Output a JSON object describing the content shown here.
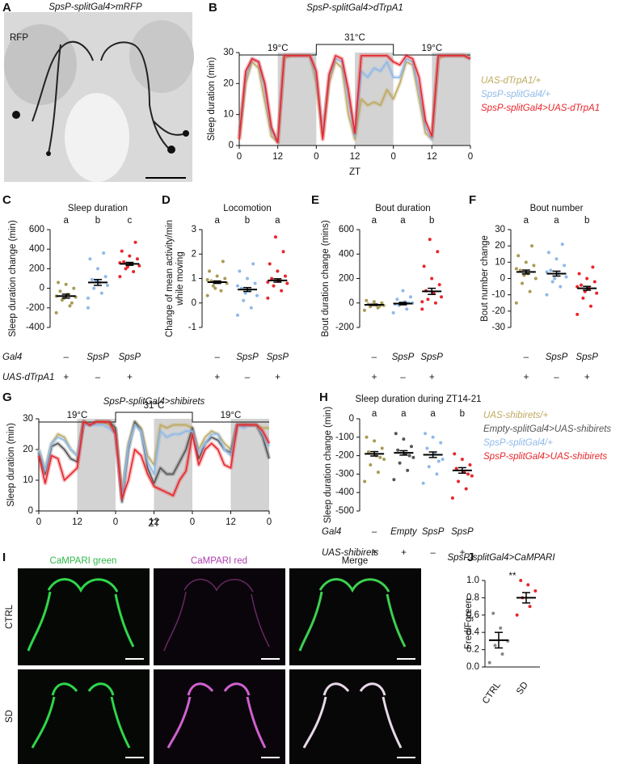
{
  "images": [
    {
      "panel": "A",
      "title": "SpsP-splitGal4>mRFP",
      "channel": "RFP"
    },
    {
      "panel": "I",
      "columns": [
        "CaMPARI green",
        "CaMPARI red",
        "Merge"
      ],
      "rows": [
        "CTRL",
        "SD"
      ]
    }
  ],
  "chart_data": [
    {
      "panel": "B",
      "type": "line",
      "title": "SpsP-splitGal4>dTrpA1",
      "ylabel": "Sleep duration (min)",
      "xlabel": "ZT",
      "x": [
        0,
        2,
        4,
        6,
        8,
        10,
        12,
        14,
        16,
        18,
        20,
        22,
        24,
        26,
        28,
        30,
        32,
        34,
        36,
        38,
        40,
        42,
        44,
        46,
        48,
        50,
        52,
        54,
        56,
        58,
        60,
        62,
        64,
        66,
        68,
        70,
        72
      ],
      "xlim": [
        0,
        72
      ],
      "xticks": [
        0,
        12,
        {
          "value": 24,
          "label": "0"
        },
        {
          "value": 36,
          "label": "12"
        },
        {
          "value": 48,
          "label": "0"
        },
        {
          "value": 60,
          "label": "12"
        },
        {
          "value": 72,
          "label": "0"
        }
      ],
      "ylim": [
        0,
        30
      ],
      "yticks": [
        0,
        10,
        20,
        30
      ],
      "shaded": [
        [
          12,
          24
        ],
        [
          36,
          48
        ],
        [
          60,
          72
        ]
      ],
      "temperature": [
        {
          "label": "19°C",
          "range": [
            0,
            24
          ]
        },
        {
          "label": "31°C",
          "range": [
            24,
            48
          ]
        },
        {
          "label": "19°C",
          "range": [
            48,
            72
          ]
        }
      ],
      "legend": "right",
      "series": [
        {
          "name": "UAS-dTrpA1/+",
          "color": "#bfa95e",
          "values": [
            2,
            20,
            27,
            25,
            14,
            3,
            1,
            28,
            29,
            29,
            29,
            29,
            20,
            3,
            20,
            27,
            25,
            10,
            2,
            15,
            13,
            14,
            13,
            18,
            15,
            20,
            27,
            26,
            15,
            4,
            2,
            28,
            29,
            29,
            29,
            29,
            28
          ]
        },
        {
          "name": "SpsP-splitGal4/+",
          "color": "#8fb9e8",
          "values": [
            3,
            22,
            28,
            27,
            18,
            5,
            1,
            29,
            29,
            29,
            29,
            29,
            22,
            4,
            22,
            28,
            27,
            15,
            3,
            24,
            22,
            25,
            24,
            27,
            22,
            22,
            28,
            27,
            18,
            6,
            2,
            29,
            29,
            29,
            29,
            29,
            28
          ]
        },
        {
          "name": "SpsP-splitGal4>UAS-dTrpA1",
          "color": "#e8262b",
          "values": [
            2,
            24,
            28,
            27,
            20,
            6,
            1,
            29,
            29,
            29,
            29,
            29,
            24,
            2,
            23,
            29,
            28,
            18,
            4,
            29,
            29,
            29,
            29,
            29,
            27,
            26,
            29,
            28,
            22,
            8,
            3,
            29,
            29,
            29,
            29,
            29,
            28
          ]
        }
      ]
    },
    {
      "panel": "C",
      "type": "dot",
      "title": "Sleep duration",
      "ylabel": "Sleep duration change (min)",
      "ylim": [
        -400,
        600
      ],
      "yticks": [
        -400,
        -200,
        0,
        200,
        400,
        600
      ],
      "groups": [
        {
          "color": "#a89a55",
          "letter": "a",
          "mean": -80,
          "sem": 20,
          "values": [
            -250,
            -180,
            -120,
            -90,
            -60,
            -30,
            0,
            40,
            60,
            -150,
            -100,
            -80
          ]
        },
        {
          "color": "#8fb9e8",
          "letter": "b",
          "mean": 60,
          "sem": 30,
          "values": [
            -200,
            -50,
            0,
            30,
            60,
            90,
            120,
            200,
            300,
            360,
            80,
            -100
          ]
        },
        {
          "color": "#e8262b",
          "letter": "c",
          "mean": 250,
          "sem": 15,
          "values": [
            120,
            170,
            200,
            230,
            250,
            270,
            300,
            330,
            380,
            470,
            220,
            260
          ]
        }
      ],
      "rows": [
        {
          "label": "Gal4",
          "cells": [
            "–",
            "SpsP",
            "SpsP"
          ]
        },
        {
          "label": "UAS-dTrpA1",
          "cells": [
            "+",
            "–",
            "+"
          ]
        }
      ]
    },
    {
      "panel": "D",
      "type": "dot",
      "title": "Locomotion",
      "ylabel": [
        "Change of mean activity/min",
        "while moving"
      ],
      "ylim": [
        -1,
        3
      ],
      "yticks": [
        -1,
        0,
        1,
        2,
        3
      ],
      "groups": [
        {
          "color": "#a89a55",
          "letter": "a",
          "mean": 0.85,
          "sem": 0.05,
          "values": [
            0.3,
            0.5,
            0.7,
            0.8,
            0.85,
            0.9,
            1.0,
            1.1,
            1.3,
            1.7,
            0.6,
            0.95
          ]
        },
        {
          "color": "#8fb9e8",
          "letter": "b",
          "mean": 0.55,
          "sem": 0.08,
          "values": [
            -0.5,
            -0.2,
            0.1,
            0.3,
            0.5,
            0.6,
            0.8,
            1.0,
            1.3,
            1.6,
            0.4,
            0.7
          ]
        },
        {
          "color": "#e8262b",
          "letter": "a",
          "mean": 0.92,
          "sem": 0.07,
          "values": [
            0.2,
            0.5,
            0.7,
            0.8,
            0.9,
            1.0,
            1.1,
            1.3,
            1.6,
            2.1,
            2.7,
            0.85
          ]
        }
      ],
      "rows": [
        {
          "cells": [
            "–",
            "SpsP",
            "SpsP"
          ]
        },
        {
          "cells": [
            "+",
            "–",
            "+"
          ]
        }
      ]
    },
    {
      "panel": "E",
      "type": "dot",
      "title": "Bout duration",
      "ylabel": "Bout duration change (mins)",
      "ylim": [
        -200,
        600
      ],
      "yticks": [
        -200,
        0,
        200,
        400,
        600
      ],
      "groups": [
        {
          "color": "#a89a55",
          "letter": "a",
          "mean": -15,
          "sem": 5,
          "values": [
            -60,
            -40,
            -30,
            -20,
            -15,
            -10,
            0,
            10,
            20,
            -25
          ]
        },
        {
          "color": "#8fb9e8",
          "letter": "a",
          "mean": -5,
          "sem": 10,
          "values": [
            -80,
            -50,
            -20,
            0,
            10,
            30,
            50,
            100,
            -10,
            0
          ]
        },
        {
          "color": "#e8262b",
          "letter": "b",
          "mean": 95,
          "sem": 25,
          "values": [
            -50,
            0,
            30,
            50,
            80,
            100,
            150,
            200,
            300,
            420,
            520,
            10
          ]
        }
      ],
      "rows": [
        {
          "cells": [
            "–",
            "SpsP",
            "SpsP"
          ]
        },
        {
          "cells": [
            "+",
            "–",
            "+"
          ]
        }
      ]
    },
    {
      "panel": "F",
      "type": "dot",
      "title": "Bout number",
      "ylabel": "Bout number change",
      "ylim": [
        -30,
        30
      ],
      "yticks": [
        -30,
        -20,
        -10,
        0,
        10,
        20,
        30
      ],
      "groups": [
        {
          "color": "#a89a55",
          "letter": "a",
          "mean": 4,
          "sem": 1.2,
          "values": [
            -15,
            -8,
            -3,
            0,
            3,
            5,
            8,
            10,
            14,
            20,
            2,
            6
          ]
        },
        {
          "color": "#8fb9e8",
          "letter": "a",
          "mean": 3,
          "sem": 1.5,
          "values": [
            -10,
            -5,
            -2,
            1,
            3,
            5,
            8,
            12,
            16,
            21,
            0,
            4
          ]
        },
        {
          "color": "#e8262b",
          "letter": "b",
          "mean": -6,
          "sem": 1.2,
          "values": [
            -22,
            -17,
            -12,
            -9,
            -6,
            -4,
            -2,
            0,
            3,
            7,
            -8,
            -5
          ]
        }
      ],
      "rows": [
        {
          "cells": [
            "–",
            "SpsP",
            "SpsP"
          ]
        },
        {
          "cells": [
            "+",
            "–",
            "+"
          ]
        }
      ]
    },
    {
      "panel": "G",
      "type": "line",
      "title": "SpsP-splitGal4>shibirets",
      "ylabel": "Sleep duration (min)",
      "xlabel": "ZT",
      "x": [
        0,
        2,
        4,
        6,
        8,
        10,
        12,
        14,
        16,
        18,
        20,
        22,
        24,
        26,
        28,
        30,
        32,
        34,
        36,
        38,
        40,
        42,
        44,
        46,
        48,
        50,
        52,
        54,
        56,
        58,
        60,
        62,
        64,
        66,
        68,
        70,
        72
      ],
      "xlim": [
        0,
        72
      ],
      "xticks": [
        0,
        12,
        {
          "value": 24,
          "label": "0"
        },
        {
          "value": 36,
          "label": "12"
        },
        {
          "value": 48,
          "label": "0"
        },
        {
          "value": 60,
          "label": "12"
        },
        {
          "value": 72,
          "label": "0"
        }
      ],
      "ylim": [
        0,
        30
      ],
      "yticks": [
        0,
        10,
        20,
        30
      ],
      "shaded": [
        [
          12,
          24
        ],
        [
          36,
          48
        ],
        [
          60,
          72
        ]
      ],
      "temperature": [
        {
          "label": "19°C",
          "range": [
            0,
            24
          ]
        },
        {
          "label": "31°C",
          "range": [
            24,
            48
          ]
        },
        {
          "label": "19°C",
          "range": [
            48,
            72
          ]
        }
      ],
      "legend": "right",
      "series": [
        {
          "name": "UAS-shibirets/+",
          "color": "#bfa95e",
          "values": [
            20,
            13,
            22,
            25,
            24,
            20,
            18,
            29,
            28,
            29,
            29,
            28,
            26,
            5,
            22,
            29,
            27,
            18,
            15,
            28,
            27,
            28,
            28,
            28,
            27,
            20,
            24,
            26,
            25,
            22,
            20,
            28,
            28,
            28,
            28,
            27,
            27
          ]
        },
        {
          "name": "Empty-splitGal4>UAS-shibirets",
          "color": "#555555",
          "values": [
            19,
            12,
            21,
            22,
            20,
            17,
            16,
            29,
            28,
            29,
            29,
            29,
            27,
            3,
            20,
            29,
            26,
            14,
            9,
            14,
            12,
            12,
            16,
            20,
            27,
            17,
            22,
            24,
            23,
            20,
            19,
            28,
            28,
            28,
            28,
            24,
            17
          ]
        },
        {
          "name": "SpsP-splitGal4/+",
          "color": "#8fb9e8",
          "values": [
            20,
            13,
            22,
            24,
            23,
            20,
            18,
            28,
            28,
            28,
            28,
            27,
            25,
            4,
            21,
            28,
            26,
            16,
            12,
            26,
            24,
            25,
            25,
            26,
            26,
            19,
            22,
            25,
            25,
            20,
            18,
            28,
            27,
            28,
            28,
            25,
            21
          ]
        },
        {
          "name": "SpsP-splitGal4>UAS-shibirets",
          "color": "#e8262b",
          "values": [
            18,
            9,
            18,
            17,
            10,
            12,
            14,
            29,
            28,
            29,
            29,
            29,
            25,
            4,
            10,
            20,
            18,
            12,
            8,
            7,
            6,
            5,
            10,
            13,
            25,
            15,
            20,
            22,
            20,
            15,
            14,
            28,
            28,
            28,
            28,
            26,
            22
          ]
        }
      ]
    },
    {
      "panel": "H",
      "type": "dot",
      "title": "Sleep duration during ZT14-21",
      "ylabel": "Sleep duration change (min)",
      "ylim": [
        -500,
        0
      ],
      "yticks": [
        -500,
        -400,
        -300,
        -200,
        -100,
        0
      ],
      "groups": [
        {
          "color": "#a89a55",
          "letter": "a",
          "mean": -190,
          "sem": 12,
          "values": [
            -340,
            -290,
            -250,
            -220,
            -200,
            -180,
            -160,
            -120,
            -100,
            -210
          ]
        },
        {
          "color": "#555555",
          "letter": "a",
          "mean": -185,
          "sem": 12,
          "values": [
            -330,
            -280,
            -240,
            -210,
            -190,
            -170,
            -150,
            -110,
            -80,
            -200
          ]
        },
        {
          "color": "#8fb9e8",
          "letter": "a",
          "mean": -195,
          "sem": 15,
          "values": [
            -350,
            -300,
            -260,
            -220,
            -190,
            -160,
            -130,
            -100,
            -80,
            -230
          ]
        },
        {
          "color": "#e8262b",
          "letter": "b",
          "mean": -280,
          "sem": 15,
          "values": [
            -430,
            -380,
            -340,
            -310,
            -290,
            -270,
            -250,
            -220,
            -190,
            -300
          ]
        }
      ],
      "rows": [
        {
          "label": "Gal4",
          "cells": [
            "–",
            "Empty",
            "SpsP",
            "SpsP"
          ]
        },
        {
          "label": "UAS-shibirets",
          "cells": [
            "+",
            "+",
            "–",
            "+"
          ]
        }
      ]
    },
    {
      "panel": "J",
      "type": "dot",
      "title": "SpsP-splitGal4>CaMPARI",
      "ylabel": "Fred/Fgreen",
      "ylim": [
        0,
        1
      ],
      "yticks": [
        {
          "value": 0,
          "label": "0.0"
        },
        0.2,
        0.4,
        0.6,
        0.8,
        {
          "value": 1,
          "label": "1.0"
        }
      ],
      "categories": [
        "CTRL",
        "SD"
      ],
      "annotation": "**",
      "groups": [
        {
          "color": "#888888",
          "mean": 0.31,
          "sem": 0.09,
          "values": [
            0.05,
            0.15,
            0.25,
            0.3,
            0.45,
            0.62
          ]
        },
        {
          "color": "#e8262b",
          "mean": 0.8,
          "sem": 0.06,
          "values": [
            0.6,
            0.7,
            0.8,
            0.88,
            0.95,
            1.0
          ]
        }
      ]
    }
  ]
}
